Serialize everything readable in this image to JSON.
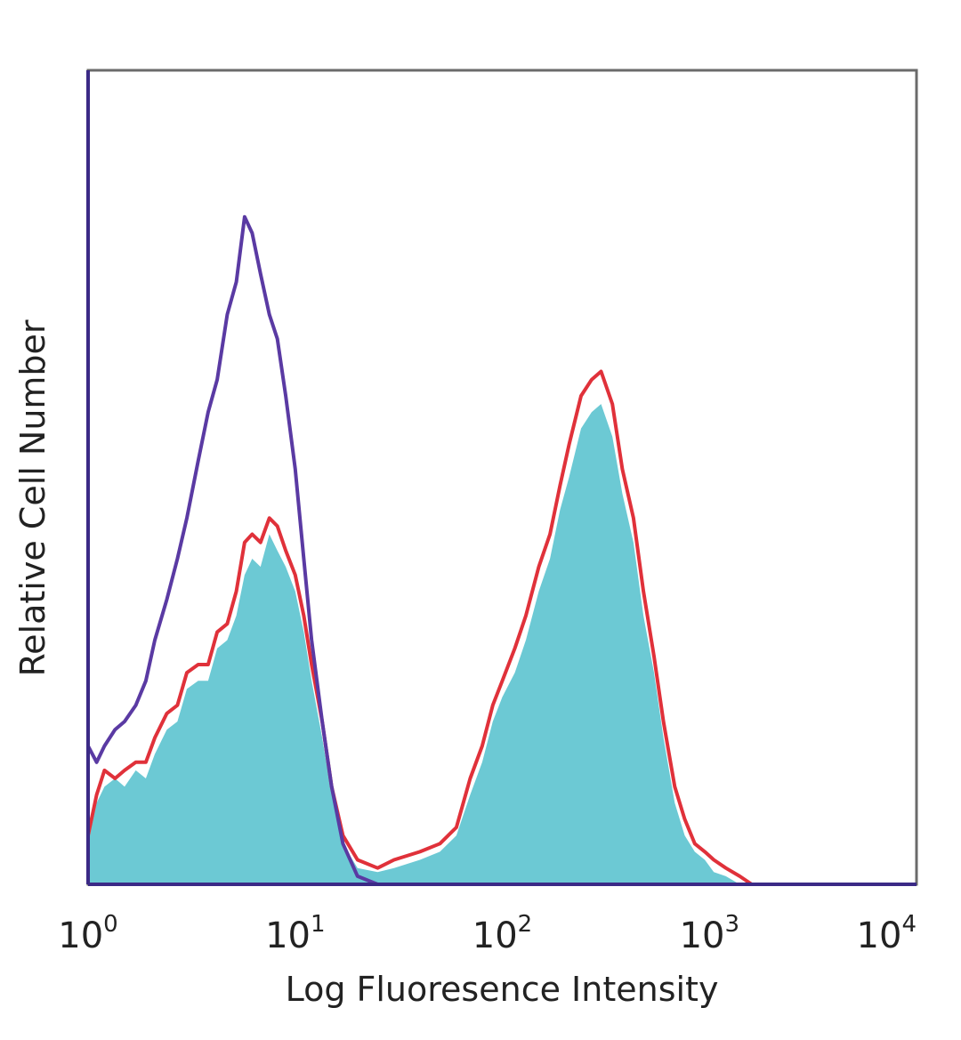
{
  "chart_data": {
    "type": "area",
    "xlabel": "Log Fluoresence Intensity",
    "ylabel": "Relative Cell Number",
    "x_scale": "log",
    "xlim": [
      1,
      10000
    ],
    "ylim": [
      0,
      1
    ],
    "grid": false,
    "x_ticks": [
      {
        "base": "10",
        "exp": "0",
        "value": 1
      },
      {
        "base": "10",
        "exp": "1",
        "value": 10
      },
      {
        "base": "10",
        "exp": "2",
        "value": 100
      },
      {
        "base": "10",
        "exp": "3",
        "value": 1000
      },
      {
        "base": "10",
        "exp": "4",
        "value": 10000
      }
    ],
    "series": [
      {
        "style": "filled",
        "color": "#6cc9d4",
        "x": [
          1,
          1.1,
          1.2,
          1.35,
          1.5,
          1.7,
          1.9,
          2.1,
          2.4,
          2.7,
          3.0,
          3.4,
          3.8,
          4.2,
          4.7,
          5.2,
          5.7,
          6.2,
          6.8,
          7.5,
          8.2,
          9.0,
          10,
          11,
          12,
          13.5,
          15,
          17,
          20,
          25,
          30,
          40,
          50,
          60,
          70,
          80,
          90,
          100,
          115,
          130,
          150,
          170,
          190,
          210,
          240,
          270,
          300,
          340,
          380,
          430,
          480,
          540,
          600,
          680,
          760,
          850,
          950,
          1050,
          1200,
          1400,
          1600,
          2000
        ],
        "values": [
          0.05,
          0.1,
          0.12,
          0.13,
          0.12,
          0.14,
          0.13,
          0.16,
          0.19,
          0.2,
          0.24,
          0.25,
          0.25,
          0.29,
          0.3,
          0.33,
          0.38,
          0.4,
          0.39,
          0.43,
          0.41,
          0.39,
          0.36,
          0.31,
          0.25,
          0.18,
          0.11,
          0.05,
          0.02,
          0.015,
          0.02,
          0.03,
          0.04,
          0.06,
          0.11,
          0.15,
          0.2,
          0.23,
          0.26,
          0.3,
          0.36,
          0.4,
          0.46,
          0.5,
          0.56,
          0.58,
          0.59,
          0.55,
          0.48,
          0.42,
          0.33,
          0.26,
          0.18,
          0.1,
          0.06,
          0.04,
          0.03,
          0.015,
          0.01,
          0.0,
          0.0,
          0.0
        ]
      },
      {
        "style": "line",
        "color": "#e0313a",
        "x": [
          1,
          1.1,
          1.2,
          1.35,
          1.5,
          1.7,
          1.9,
          2.1,
          2.4,
          2.7,
          3.0,
          3.4,
          3.8,
          4.2,
          4.7,
          5.2,
          5.7,
          6.2,
          6.8,
          7.5,
          8.2,
          9.0,
          10,
          11,
          12,
          13.5,
          15,
          17,
          20,
          25,
          30,
          40,
          50,
          60,
          70,
          80,
          90,
          100,
          115,
          130,
          150,
          170,
          190,
          210,
          240,
          270,
          300,
          340,
          380,
          430,
          480,
          540,
          600,
          680,
          760,
          850,
          950,
          1050,
          1200,
          1400,
          1600,
          2000
        ],
        "values": [
          0.06,
          0.11,
          0.14,
          0.13,
          0.14,
          0.15,
          0.15,
          0.18,
          0.21,
          0.22,
          0.26,
          0.27,
          0.27,
          0.31,
          0.32,
          0.36,
          0.42,
          0.43,
          0.42,
          0.45,
          0.44,
          0.41,
          0.38,
          0.33,
          0.27,
          0.2,
          0.12,
          0.06,
          0.03,
          0.02,
          0.03,
          0.04,
          0.05,
          0.07,
          0.13,
          0.17,
          0.22,
          0.25,
          0.29,
          0.33,
          0.39,
          0.43,
          0.49,
          0.54,
          0.6,
          0.62,
          0.63,
          0.59,
          0.51,
          0.45,
          0.36,
          0.28,
          0.2,
          0.12,
          0.08,
          0.05,
          0.04,
          0.03,
          0.02,
          0.01,
          0.0,
          0.0
        ]
      },
      {
        "style": "line",
        "color": "#5a3aa3",
        "x": [
          1,
          1.1,
          1.2,
          1.35,
          1.5,
          1.7,
          1.9,
          2.1,
          2.4,
          2.7,
          3.0,
          3.4,
          3.8,
          4.2,
          4.7,
          5.2,
          5.7,
          6.2,
          6.8,
          7.5,
          8.2,
          9.0,
          10,
          11,
          12,
          13.5,
          15,
          17,
          20,
          25,
          30,
          40,
          60,
          100,
          300,
          1000,
          10000
        ],
        "values": [
          0.17,
          0.15,
          0.17,
          0.19,
          0.2,
          0.22,
          0.25,
          0.3,
          0.35,
          0.4,
          0.45,
          0.52,
          0.58,
          0.62,
          0.7,
          0.74,
          0.82,
          0.8,
          0.75,
          0.7,
          0.67,
          0.6,
          0.51,
          0.4,
          0.3,
          0.2,
          0.12,
          0.05,
          0.01,
          0.0,
          0.0,
          0.0,
          0.0,
          0.0,
          0.0,
          0.0,
          0.0
        ]
      }
    ]
  }
}
